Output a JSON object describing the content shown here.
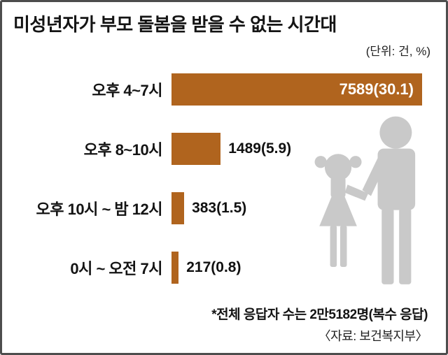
{
  "chart_data": {
    "type": "bar",
    "orientation": "horizontal",
    "title": "미성년자가 부모 돌봄을 받을 수 없는 시간대",
    "unit_note": "(단위: 건, %)",
    "categories": [
      "오후 4~7시",
      "오후 8~10시",
      "오후 10시 ~ 밤 12시",
      "0시 ~ 오전 7시"
    ],
    "values": [
      7589,
      1489,
      383,
      217
    ],
    "percentages": [
      30.1,
      5.9,
      1.5,
      0.8
    ],
    "value_labels": [
      "7589(30.1)",
      "1489(5.9)",
      "383(1.5)",
      "217(0.8)"
    ],
    "xlim": [
      0,
      7589
    ],
    "grid": false,
    "legend": "none",
    "bar_color": "#b0641e",
    "footnote": "*전체 응답자 수는 2만5182명(복수 응답)",
    "source": "〈자료: 보건복지부〉"
  },
  "decor": {
    "silhouette_icon": "children-holding-hands-silhouette",
    "silhouette_color": "#c9c9c9"
  }
}
